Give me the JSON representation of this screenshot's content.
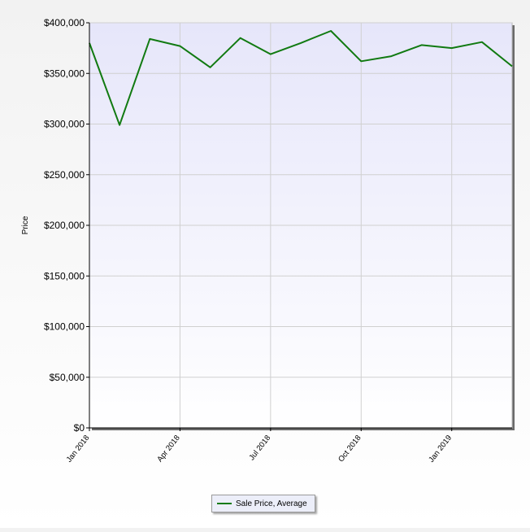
{
  "chart_data": {
    "type": "line",
    "title": "",
    "xlabel": "",
    "ylabel": "Price",
    "ylim": [
      0,
      400000
    ],
    "yticks": [
      "$0",
      "$50,000",
      "$100,000",
      "$150,000",
      "$200,000",
      "$250,000",
      "$300,000",
      "$350,000",
      "$400,000"
    ],
    "ytick_values": [
      0,
      50000,
      100000,
      150000,
      200000,
      250000,
      300000,
      350000,
      400000
    ],
    "xticks": [
      "Jan 2018",
      "Apr 2018",
      "Jul 2018",
      "Oct 2018",
      "Jan 2019"
    ],
    "xtick_dates": [
      "2018-01",
      "2018-04",
      "2018-07",
      "2018-10",
      "2019-01"
    ],
    "x": [
      "2018-01",
      "2018-02",
      "2018-03",
      "2018-04",
      "2018-05",
      "2018-06",
      "2018-07",
      "2018-08",
      "2018-09",
      "2018-10",
      "2018-11",
      "2018-12",
      "2019-01",
      "2019-02",
      "2019-03"
    ],
    "series": [
      {
        "name": "Sale Price, Average",
        "color": "#117a11",
        "values": [
          380000,
          299000,
          384000,
          377000,
          356000,
          385000,
          369000,
          380000,
          392000,
          362000,
          367000,
          378000,
          375000,
          381000,
          357000
        ]
      }
    ],
    "grid": true,
    "legend_position": "bottom"
  }
}
